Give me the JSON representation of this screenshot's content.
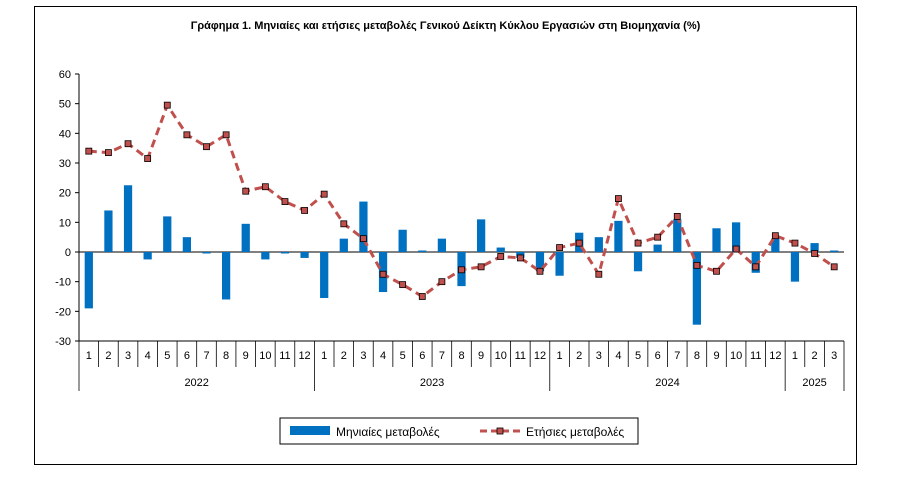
{
  "chart_data": {
    "type": "bar",
    "title": "Γράφημα 1.  Μηνιαίες και ετήσιες μεταβολές  Γενικού Δείκτη Κύκλου Εργασιών στη Βιομηχανία  (%)",
    "xlabel": "",
    "ylabel": "",
    "ylim": [
      -30,
      60
    ],
    "yticks": [
      60,
      50,
      40,
      30,
      20,
      10,
      0,
      -10,
      -20,
      -30
    ],
    "grid": false,
    "legend": "bottom-center",
    "categories": [
      "1",
      "2",
      "3",
      "4",
      "5",
      "6",
      "7",
      "8",
      "9",
      "10",
      "11",
      "12",
      "1",
      "2",
      "3",
      "4",
      "5",
      "6",
      "7",
      "8",
      "9",
      "10",
      "11",
      "12",
      "1",
      "2",
      "3",
      "4",
      "5",
      "6",
      "7",
      "8",
      "9",
      "10",
      "11",
      "12",
      "1",
      "2",
      "3"
    ],
    "year_groups": [
      {
        "label": "2022",
        "count": 12
      },
      {
        "label": "2023",
        "count": 12
      },
      {
        "label": "2024",
        "count": 12
      },
      {
        "label": "2025",
        "count": 3
      }
    ],
    "series": [
      {
        "name": "Μηνιαίες μεταβολές",
        "type": "bar",
        "color": "#0070c0",
        "values": [
          -19,
          14,
          22.5,
          -2.5,
          12,
          5,
          -0.5,
          -16,
          9.5,
          -2.5,
          -0.5,
          -2,
          -15.5,
          4.5,
          17,
          -13.5,
          7.5,
          0.5,
          4.5,
          -11.5,
          11,
          1.5,
          -2,
          -6.5,
          -8,
          6.5,
          5,
          10.5,
          -6.5,
          2.5,
          11,
          -24.5,
          8,
          10,
          -7,
          4.5,
          -10,
          3,
          0.5
        ]
      },
      {
        "name": "Ετήσιες μεταβολές",
        "type": "line",
        "color": "#c0504d",
        "values": [
          34,
          33.5,
          36.5,
          31.5,
          49.5,
          39.5,
          35.5,
          39.5,
          20.5,
          22,
          17,
          14,
          19.5,
          9.5,
          4.5,
          -7.5,
          -11,
          -15,
          -10,
          -6,
          -5,
          -1.5,
          -2,
          -6.5,
          1.5,
          3,
          -7.5,
          18,
          3,
          5,
          12,
          -4.5,
          -6.5,
          1,
          -5,
          5.5,
          3,
          -0.5,
          -5
        ]
      }
    ]
  }
}
